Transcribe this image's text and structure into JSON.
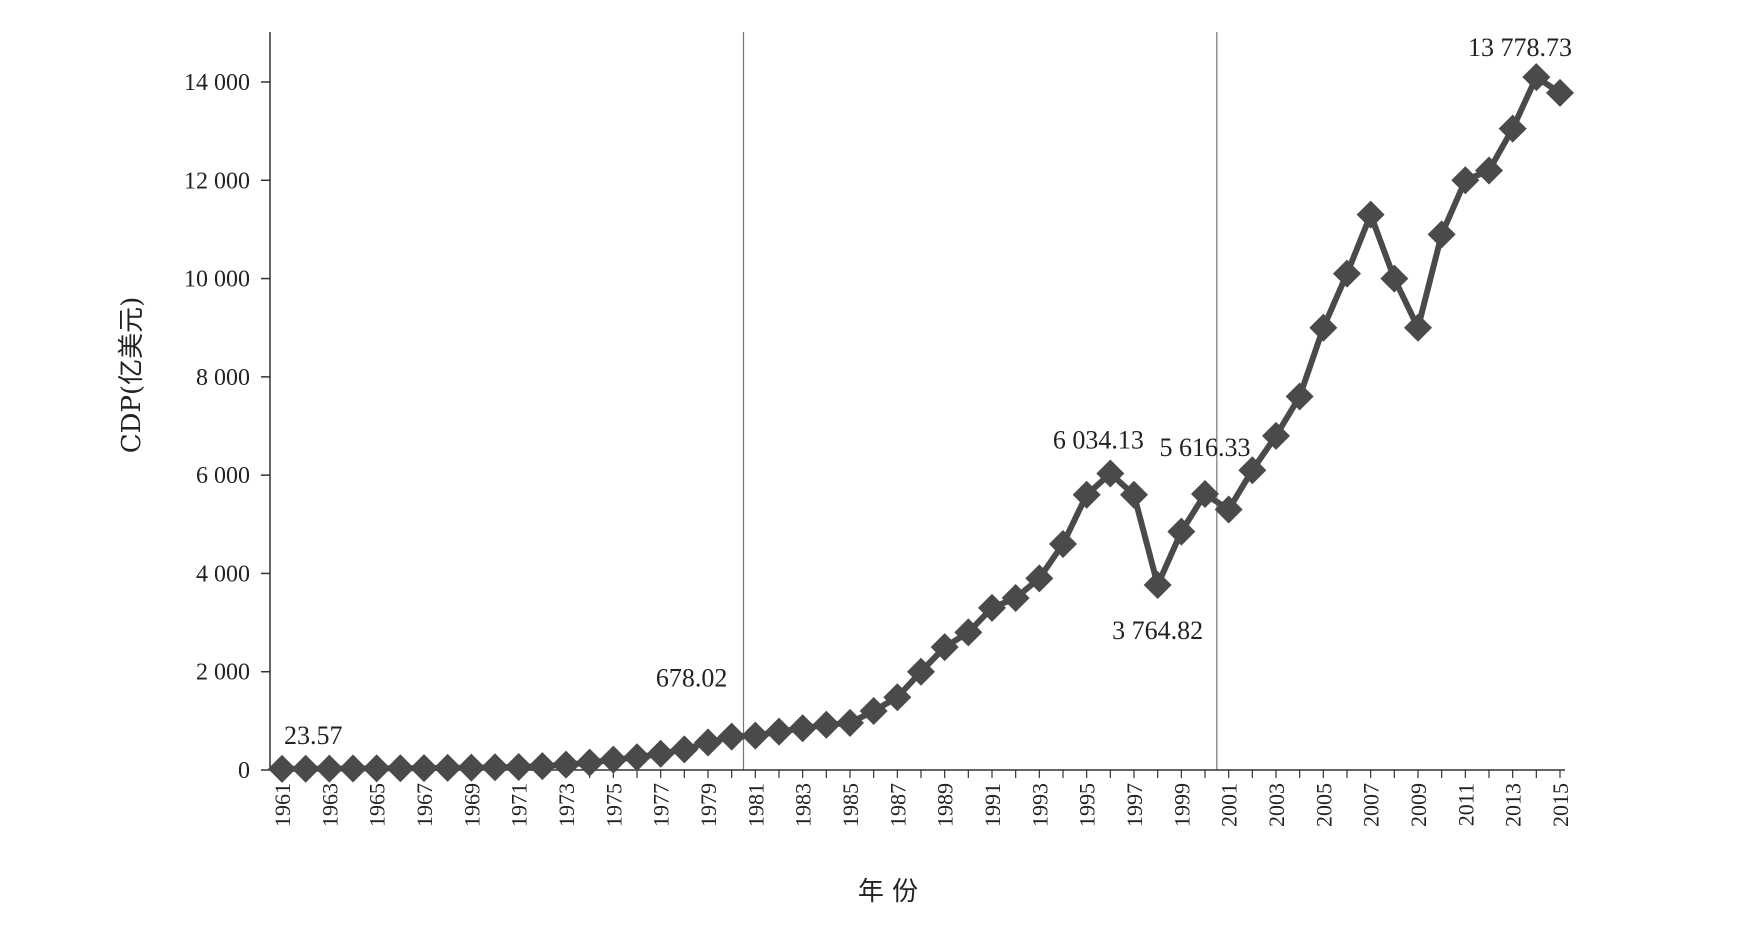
{
  "chart_data": {
    "type": "line",
    "title": "",
    "xlabel": "年 份",
    "ylabel": "CDP(亿美元)",
    "ylim": [
      0,
      15000
    ],
    "yticks": [
      0,
      2000,
      4000,
      6000,
      8000,
      10000,
      12000,
      14000
    ],
    "ytick_labels": [
      "0",
      "2 000",
      "4 000",
      "6 000",
      "8 000",
      "10 000",
      "12 000",
      "14 000"
    ],
    "xtick_labels": [
      "1961",
      "1963",
      "1965",
      "1967",
      "1969",
      "1971",
      "1973",
      "1975",
      "1977",
      "1979",
      "1981",
      "1983",
      "1985",
      "1987",
      "1989",
      "1991",
      "1993",
      "1995",
      "1997",
      "1999",
      "2001",
      "2003",
      "2005",
      "2007",
      "2009",
      "2011",
      "2013",
      "2015"
    ],
    "grid": false,
    "vertical_reference_lines": [
      1980.5,
      2000.5
    ],
    "x": [
      1961,
      1962,
      1963,
      1964,
      1965,
      1966,
      1967,
      1968,
      1969,
      1970,
      1971,
      1972,
      1973,
      1974,
      1975,
      1976,
      1977,
      1978,
      1979,
      1980,
      1981,
      1982,
      1983,
      1984,
      1985,
      1986,
      1987,
      1988,
      1989,
      1990,
      1991,
      1992,
      1993,
      1994,
      1995,
      1996,
      1997,
      1998,
      1999,
      2000,
      2001,
      2002,
      2003,
      2004,
      2005,
      2006,
      2007,
      2008,
      2009,
      2010,
      2011,
      2012,
      2013,
      2014,
      2015
    ],
    "series": [
      {
        "values": [
          23.57,
          25,
          27,
          30,
          33,
          35,
          38,
          42,
          48,
          55,
          62,
          80,
          110,
          150,
          210,
          260,
          330,
          420,
          560,
          678.02,
          700,
          780,
          850,
          920,
          960,
          1200,
          1480,
          2000,
          2500,
          2800,
          3300,
          3500,
          3900,
          4600,
          5600,
          6034.13,
          5600,
          3764.82,
          4850,
          5616.33,
          5300,
          6100,
          6800,
          7600,
          9000,
          10100,
          11300,
          10000,
          9000,
          10900,
          12000,
          12200,
          13050,
          14100,
          13778.73
        ],
        "color": "#4a4a4a"
      }
    ],
    "annotations": [
      {
        "x": 1961,
        "y": 23.57,
        "text": "23.57"
      },
      {
        "x": 1980,
        "y": 678.02,
        "text": "678.02"
      },
      {
        "x": 1996,
        "y": 6034.13,
        "text": "6 034.13"
      },
      {
        "x": 2000,
        "y": 5616.33,
        "text": "5 616.33"
      },
      {
        "x": 1998,
        "y": 3764.82,
        "text": "3 764.82"
      },
      {
        "x": 2015,
        "y": 13778.73,
        "text": "13 778.73"
      }
    ]
  }
}
